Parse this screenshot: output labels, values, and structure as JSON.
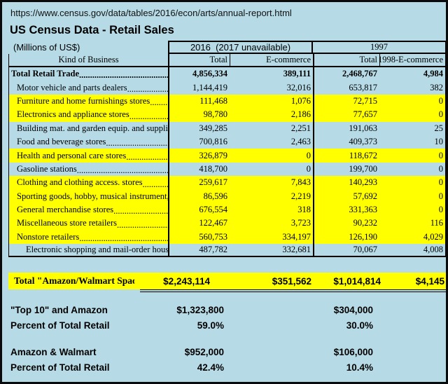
{
  "page": {
    "url": "https://www.census.gov/data/tables/2016/econ/arts/annual-report.html",
    "title": "US Census Data - Retail Sales",
    "units_note": "(Millions of US$)"
  },
  "table": {
    "group_2016": "2016  (2017 unavailable)",
    "group_1997": "1997",
    "headers": {
      "kind": "Kind of Business",
      "total_2016": "Total",
      "ecom_2016": "E-commerce",
      "total_1997": "Total",
      "ecom_1998": "1998-E-commerce"
    },
    "rows": [
      {
        "label": "Total Retail Trade",
        "v": [
          "4,856,334",
          "389,111",
          "2,468,767",
          "4,984"
        ],
        "highlight": false,
        "bold": true,
        "indent": 0,
        "leader": true
      },
      {
        "label": "Motor vehicle and parts dealers",
        "v": [
          "1,144,419",
          "32,016",
          "653,817",
          "382"
        ],
        "highlight": false,
        "bold": false,
        "indent": 1,
        "leader": true
      },
      {
        "label": "Furniture and home furnishings stores",
        "v": [
          "111,468",
          "1,076",
          "72,715",
          "0"
        ],
        "highlight": true,
        "bold": false,
        "indent": 1,
        "leader": true
      },
      {
        "label": "Electronics and appliance stores",
        "v": [
          "98,780",
          "2,186",
          "77,657",
          "0"
        ],
        "highlight": true,
        "bold": false,
        "indent": 1,
        "leader": true
      },
      {
        "label": "Building mat. and garden equip. and supplies deal",
        "v": [
          "349,285",
          "2,251",
          "191,063",
          "25"
        ],
        "highlight": false,
        "bold": false,
        "indent": 1,
        "leader": false
      },
      {
        "label": "Food and beverage stores",
        "v": [
          "700,816",
          "2,463",
          "409,373",
          "10"
        ],
        "highlight": false,
        "bold": false,
        "indent": 1,
        "leader": true
      },
      {
        "label": "Health and personal care stores",
        "v": [
          "326,879",
          "0",
          "118,672",
          "0"
        ],
        "highlight": true,
        "bold": false,
        "indent": 1,
        "leader": true
      },
      {
        "label": "Gasoline stations",
        "v": [
          "418,700",
          "0",
          "199,700",
          "0"
        ],
        "highlight": false,
        "bold": false,
        "indent": 1,
        "leader": true
      },
      {
        "label": "Clothing and clothing access. stores",
        "v": [
          "259,617",
          "7,843",
          "140,293",
          "0"
        ],
        "highlight": true,
        "bold": false,
        "indent": 1,
        "leader": true
      },
      {
        "label": "Sporting goods, hobby, musical instrument, and",
        "v": [
          "86,596",
          "2,219",
          "57,692",
          "0"
        ],
        "highlight": true,
        "bold": false,
        "indent": 1,
        "leader": false
      },
      {
        "label": "General merchandise stores",
        "v": [
          "676,554",
          "318",
          "331,363",
          "0"
        ],
        "highlight": true,
        "bold": false,
        "indent": 1,
        "leader": true
      },
      {
        "label": "Miscellaneous store retailers",
        "v": [
          "122,467",
          "3,723",
          "90,232",
          "116"
        ],
        "highlight": true,
        "bold": false,
        "indent": 1,
        "leader": true
      },
      {
        "label": "Nonstore retailers",
        "v": [
          "560,753",
          "334,197",
          "126,190",
          "4,029"
        ],
        "highlight": true,
        "bold": false,
        "indent": 1,
        "leader": true
      },
      {
        "label": "Electronic shopping and mail-order houses",
        "v": [
          "487,782",
          "332,681",
          "70,067",
          "4,008"
        ],
        "highlight": false,
        "bold": false,
        "indent": 2,
        "leader": true
      }
    ]
  },
  "summary_row": {
    "label": "Total \"Amazon/Walmart Space\"",
    "values": [
      "$2,243,114",
      "$351,562",
      "$1,014,814",
      "$4,145"
    ]
  },
  "bottom": {
    "groups": [
      {
        "label": "\"Top 10\" and Amazon",
        "value_2016": "$1,323,800",
        "value_1997": "$304,000",
        "percent_label": "Percent of Total Retail",
        "percent_2016": "59.0%",
        "percent_1997": "30.0%"
      },
      {
        "label": "Amazon & Walmart",
        "value_2016": "$952,000",
        "value_1997": "$106,000",
        "percent_label": "Percent of Total Retail",
        "percent_2016": "42.4%",
        "percent_1997": "10.4%"
      }
    ]
  },
  "colors": {
    "background": "#B6DBE6",
    "highlight": "#FFFF00",
    "border": "#000000",
    "text": "#000000"
  },
  "chart_data": {
    "type": "table",
    "title": "US Census Data - Retail Sales",
    "units": "Millions of US$",
    "columns": [
      "Kind of Business",
      "2016 Total",
      "2016 E-commerce",
      "1997 Total",
      "1998-E-commerce"
    ],
    "rows": [
      [
        "Total Retail Trade",
        4856334,
        389111,
        2468767,
        4984
      ],
      [
        "Motor vehicle and parts dealers",
        1144419,
        32016,
        653817,
        382
      ],
      [
        "Furniture and home furnishings stores",
        111468,
        1076,
        72715,
        0
      ],
      [
        "Electronics and appliance stores",
        98780,
        2186,
        77657,
        0
      ],
      [
        "Building mat. and garden equip. and supplies deal",
        349285,
        2251,
        191063,
        25
      ],
      [
        "Food and beverage stores",
        700816,
        2463,
        409373,
        10
      ],
      [
        "Health and personal care stores",
        326879,
        0,
        118672,
        0
      ],
      [
        "Gasoline stations",
        418700,
        0,
        199700,
        0
      ],
      [
        "Clothing and clothing access. stores",
        259617,
        7843,
        140293,
        0
      ],
      [
        "Sporting goods, hobby, musical instrument, and",
        86596,
        2219,
        57692,
        0
      ],
      [
        "General merchandise stores",
        676554,
        318,
        331363,
        0
      ],
      [
        "Miscellaneous store retailers",
        122467,
        3723,
        90232,
        116
      ],
      [
        "Nonstore retailers",
        560753,
        334197,
        126190,
        4029
      ],
      [
        "Electronic shopping and mail-order houses",
        487782,
        332681,
        70067,
        4008
      ]
    ],
    "highlighted_rows": [
      2,
      3,
      6,
      8,
      9,
      10,
      11,
      12
    ],
    "summary_rows": [
      {
        "label": "Total \"Amazon/Walmart Space\"",
        "values_2016": [
          2243114,
          351562
        ],
        "values_1997": [
          1014814,
          4145
        ]
      },
      {
        "label": "\"Top 10\" and Amazon",
        "value_2016": 1323800,
        "value_1997": 304000
      },
      {
        "label": "Percent of Total Retail",
        "value_2016": "59.0%",
        "value_1997": "30.0%"
      },
      {
        "label": "Amazon & Walmart",
        "value_2016": 952000,
        "value_1997": 106000
      },
      {
        "label": "Percent of Total Retail",
        "value_2016": "42.4%",
        "value_1997": "10.4%"
      }
    ]
  }
}
